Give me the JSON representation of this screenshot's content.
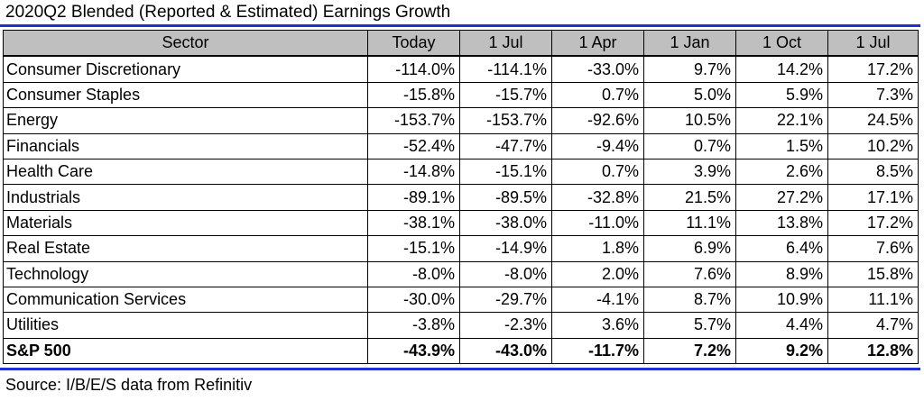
{
  "title": "2020Q2 Blended (Reported & Estimated) Earnings Growth",
  "source": "Source: I/B/E/S data from Refinitiv",
  "colors": {
    "rule": "#1f2fd0",
    "header_bg": "#bfbfbf"
  },
  "table": {
    "columns": [
      "Sector",
      "Today",
      "1 Jul",
      "1 Apr",
      "1 Jan",
      "1 Oct",
      "1 Jul"
    ],
    "rows": [
      [
        "Consumer Discretionary",
        "-114.0%",
        "-114.1%",
        "-33.0%",
        "9.7%",
        "14.2%",
        "17.2%"
      ],
      [
        "Consumer Staples",
        "-15.8%",
        "-15.7%",
        "0.7%",
        "5.0%",
        "5.9%",
        "7.3%"
      ],
      [
        "Energy",
        "-153.7%",
        "-153.7%",
        "-92.6%",
        "10.5%",
        "22.1%",
        "24.5%"
      ],
      [
        "Financials",
        "-52.4%",
        "-47.7%",
        "-9.4%",
        "0.7%",
        "1.5%",
        "10.2%"
      ],
      [
        "Health Care",
        "-14.8%",
        "-15.1%",
        "0.7%",
        "3.9%",
        "2.6%",
        "8.5%"
      ],
      [
        "Industrials",
        "-89.1%",
        "-89.5%",
        "-32.8%",
        "21.5%",
        "27.2%",
        "17.1%"
      ],
      [
        "Materials",
        "-38.1%",
        "-38.0%",
        "-11.0%",
        "11.1%",
        "13.8%",
        "17.2%"
      ],
      [
        "Real Estate",
        "-15.1%",
        "-14.9%",
        "1.8%",
        "6.9%",
        "6.4%",
        "7.6%"
      ],
      [
        "Technology",
        "-8.0%",
        "-8.0%",
        "2.0%",
        "7.6%",
        "8.9%",
        "15.8%"
      ],
      [
        "Communication Services",
        "-30.0%",
        "-29.7%",
        "-4.1%",
        "8.7%",
        "10.9%",
        "11.1%"
      ],
      [
        "Utilities",
        "-3.8%",
        "-2.3%",
        "3.6%",
        "5.7%",
        "4.4%",
        "4.7%"
      ]
    ],
    "total": [
      "S&P 500",
      "-43.9%",
      "-43.0%",
      "-11.7%",
      "7.2%",
      "9.2%",
      "12.8%"
    ]
  }
}
